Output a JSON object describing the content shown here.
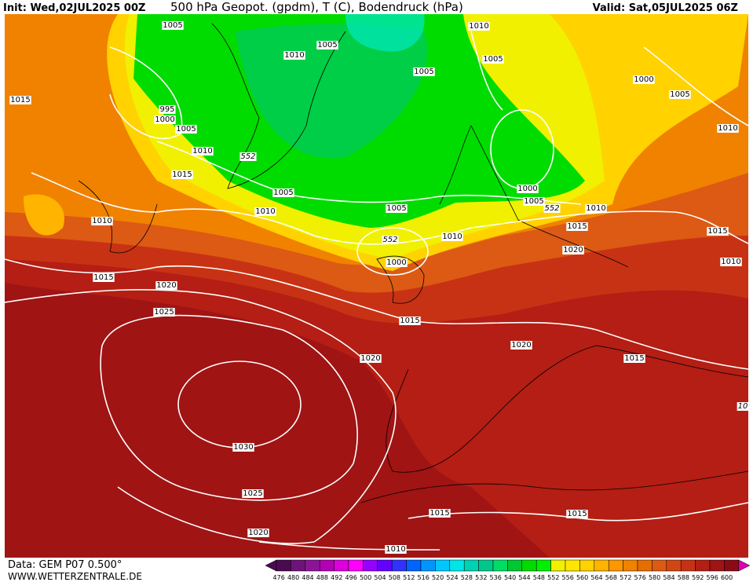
{
  "header": {
    "init": "Init: Wed,02JUL2025 00Z",
    "title": "500 hPa Geopot. (gpdm), T (C), Bodendruck (hPa)",
    "valid": "Valid: Sat,05JUL2025 06Z"
  },
  "contour_labels": [
    1005,
    1010,
    1005,
    1010,
    1005,
    1000,
    1005,
    1015,
    1005,
    995,
    1000,
    1005,
    1010,
    1010,
    552,
    1015,
    1005,
    1000,
    1005,
    552,
    1010,
    1010,
    1005,
    1010,
    1015,
    1010,
    552,
    1015,
    1000,
    1020,
    1010,
    1015,
    1020,
    1025,
    1015,
    1020,
    1015,
    1020,
    10,
    1030,
    1025,
    1015,
    1015,
    1020,
    1010
  ],
  "footer": {
    "source": "Data: GEM P07 0.500°",
    "site": "WWW.WETTERZENTRALE.DE"
  },
  "colorbar": {
    "levels": [
      476,
      480,
      484,
      488,
      492,
      496,
      500,
      504,
      508,
      512,
      516,
      520,
      524,
      528,
      532,
      536,
      540,
      544,
      548,
      552,
      556,
      560,
      564,
      568,
      572,
      576,
      580,
      584,
      588,
      592,
      596,
      600
    ],
    "colors": [
      "#4b0a50",
      "#6e1478",
      "#8c1496",
      "#b400b4",
      "#dc00dc",
      "#ff00ff",
      "#9600ff",
      "#6400ff",
      "#3232ff",
      "#0064ff",
      "#0096ff",
      "#00c8ff",
      "#00e6e6",
      "#00d2b4",
      "#00c88c",
      "#00dc64",
      "#00c832",
      "#00dc00",
      "#00f000",
      "#f0f000",
      "#ffe600",
      "#ffd200",
      "#ffb400",
      "#ff9600",
      "#f08200",
      "#e66e00",
      "#dc5a14",
      "#d24614",
      "#c83214",
      "#b41e14",
      "#a01414",
      "#8c0a14"
    ]
  }
}
